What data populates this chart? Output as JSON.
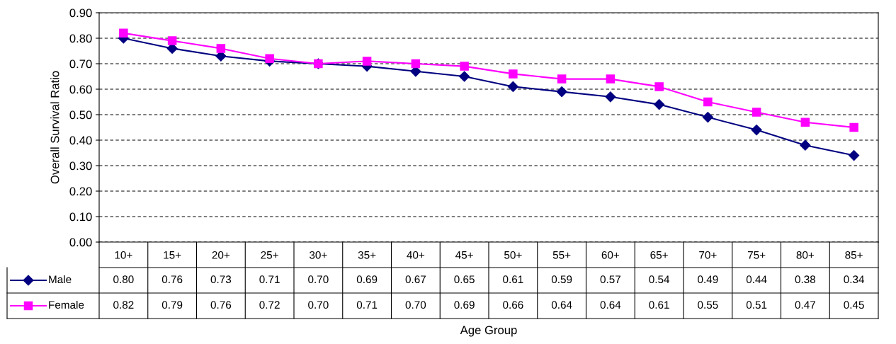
{
  "chart_data": {
    "type": "line",
    "ylabel": "Overall Survival Ratio",
    "annotations": [
      "Age Group"
    ],
    "categories": [
      "10+",
      "15+",
      "20+",
      "25+",
      "30+",
      "35+",
      "40+",
      "45+",
      "50+",
      "55+",
      "60+",
      "65+",
      "70+",
      "75+",
      "80+",
      "85+"
    ],
    "series": [
      {
        "name": "Male",
        "color": "#000080",
        "marker": "diamond",
        "values": [
          0.8,
          0.76,
          0.73,
          0.71,
          0.7,
          0.69,
          0.67,
          0.65,
          0.61,
          0.59,
          0.57,
          0.54,
          0.49,
          0.44,
          0.38,
          0.34
        ],
        "value_labels": [
          "0.80",
          "0.76",
          "0.73",
          "0.71",
          "0.70",
          "0.69",
          "0.67",
          "0.65",
          "0.61",
          "0.59",
          "0.57",
          "0.54",
          "0.49",
          "0.44",
          "0.38",
          "0.34"
        ]
      },
      {
        "name": "Female",
        "color": "#ff00ff",
        "marker": "square",
        "values": [
          0.82,
          0.79,
          0.76,
          0.72,
          0.7,
          0.71,
          0.7,
          0.69,
          0.66,
          0.64,
          0.64,
          0.61,
          0.55,
          0.51,
          0.47,
          0.45
        ],
        "value_labels": [
          "0.82",
          "0.79",
          "0.76",
          "0.72",
          "0.70",
          "0.71",
          "0.70",
          "0.69",
          "0.66",
          "0.64",
          "0.64",
          "0.61",
          "0.55",
          "0.51",
          "0.47",
          "0.45"
        ]
      }
    ],
    "ylim": [
      0,
      0.9
    ],
    "yticks": [
      {
        "value": 0,
        "label": "0.00"
      },
      {
        "value": 0.1,
        "label": "0.10"
      },
      {
        "value": 0.2,
        "label": "0.20"
      },
      {
        "value": 0.3,
        "label": "0.30"
      },
      {
        "value": 0.4,
        "label": "0.40"
      },
      {
        "value": 0.5,
        "label": "0.50"
      },
      {
        "value": 0.6,
        "label": "0.60"
      },
      {
        "value": 0.7,
        "label": "0.70"
      },
      {
        "value": 0.8,
        "label": "0.80"
      },
      {
        "value": 0.9,
        "label": "0.90"
      }
    ],
    "grid": "y",
    "legend": "bottom",
    "line_style": "solid"
  }
}
